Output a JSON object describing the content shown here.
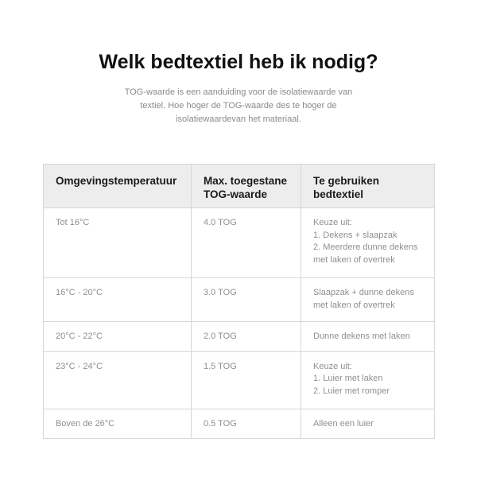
{
  "title": "Welk bedtextiel heb ik nodig?",
  "subtitle": "TOG-waarde is een aanduiding voor de isolatiewaarde van textiel. Hoe hoger de TOG-waarde des te hoger de isolatiewaardevan het materiaal.",
  "table": {
    "headers": [
      "Omgevingstemperatuur",
      "Max. toegestane TOG-waarde",
      "Te gebruiken bedtextiel"
    ],
    "rows": [
      {
        "temp": "Tot 16°C",
        "tog": "4.0 TOG",
        "lines": [
          "Keuze uit:",
          "1. Dekens + slaapzak",
          "2. Meerdere dunne dekens met laken of overtrek"
        ]
      },
      {
        "temp": "16°C - 20°C",
        "tog": "3.0 TOG",
        "lines": [
          "Slaapzak + dunne dekens met laken of overtrek"
        ]
      },
      {
        "temp": "20°C - 22°C",
        "tog": "2.0 TOG",
        "lines": [
          "Dunne dekens met laken"
        ]
      },
      {
        "temp": "23°C - 24°C",
        "tog": "1.5 TOG",
        "lines": [
          "Keuze uit:",
          "1. Luier met laken",
          "2. Luier met romper"
        ]
      },
      {
        "temp": "Boven de 26°C",
        "tog": "0.5 TOG",
        "lines": [
          "Alleen een luier"
        ]
      }
    ]
  }
}
